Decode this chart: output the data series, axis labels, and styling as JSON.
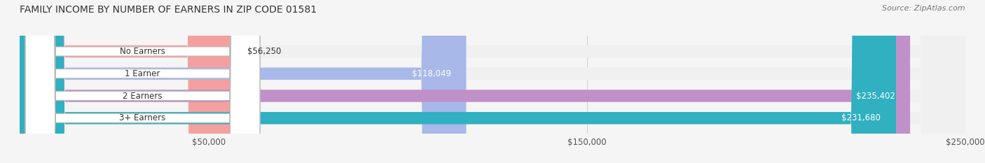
{
  "title": "FAMILY INCOME BY NUMBER OF EARNERS IN ZIP CODE 01581",
  "source": "Source: ZipAtlas.com",
  "categories": [
    "No Earners",
    "1 Earner",
    "2 Earners",
    "3+ Earners"
  ],
  "values": [
    56250,
    118049,
    235402,
    231680
  ],
  "bar_colors": [
    "#f4a0a0",
    "#a8b8e8",
    "#c090c8",
    "#30b0c0"
  ],
  "bar_bg_color": "#f0f0f0",
  "label_colors": [
    "#333333",
    "#333333",
    "#ffffff",
    "#ffffff"
  ],
  "x_max": 250000,
  "x_ticks": [
    50000,
    150000,
    250000
  ],
  "x_tick_labels": [
    "$50,000",
    "$150,000",
    "$250,000"
  ],
  "value_labels": [
    "$56,250",
    "$118,049",
    "$235,402",
    "$231,680"
  ],
  "figsize": [
    14.06,
    2.33
  ],
  "background_color": "#f5f5f5",
  "bar_height": 0.55,
  "title_fontsize": 10,
  "label_fontsize": 8.5,
  "value_fontsize": 8.5,
  "tick_fontsize": 8.5,
  "source_fontsize": 8
}
